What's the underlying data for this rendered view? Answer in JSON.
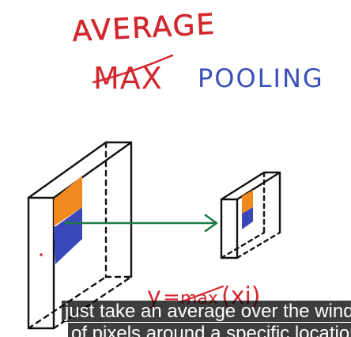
{
  "whiteboard": {
    "title": "AVERAGE",
    "struck_word": "MAX",
    "subtitle": "POOLING",
    "formula_left": "y",
    "formula_struck": "max",
    "formula_arg": "(xi)",
    "colors": {
      "red_ink": "#d3272e",
      "blue_ink": "#3a4fb8",
      "orange_patch": "#f08a1f",
      "blue_patch": "#3848b8",
      "green_arrow": "#1f7a45",
      "black_ink": "#111111"
    }
  },
  "captions": {
    "line1": "just take an average over the window",
    "line2": "of pixels around a specific location."
  }
}
